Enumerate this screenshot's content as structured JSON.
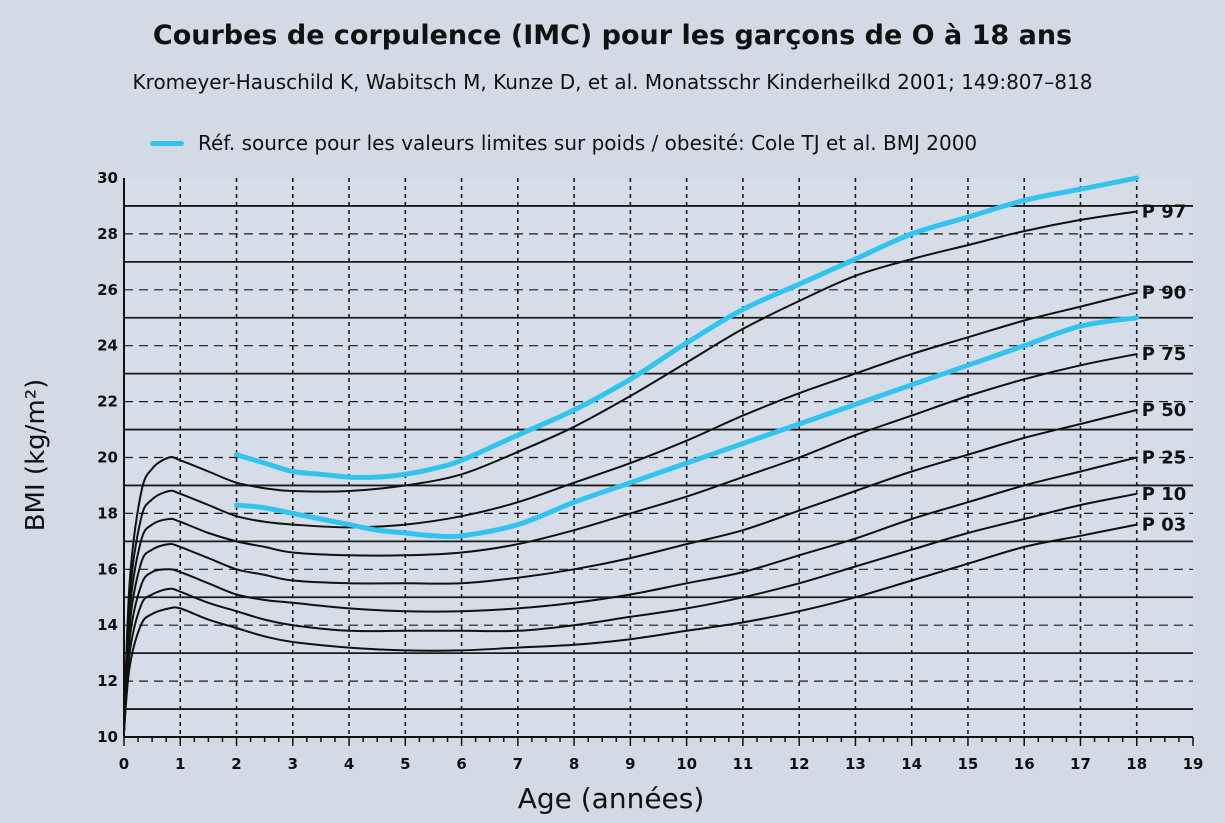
{
  "chart_data": {
    "type": "line",
    "title": "Courbes de corpulence (IMC) pour les garçons de O à 18 ans",
    "subtitle": "Kromeyer-Hauschild K, Wabitsch M, Kunze D, et al. Monatsschr Kinderheilkd 2001; 149:807–818",
    "legend": {
      "label": "Réf. source pour les valeurs limites sur poids / obesité: Cole TJ et al. BMJ 2000",
      "position": "top-left",
      "color": "#33c3ef"
    },
    "xlabel": "Age (années)",
    "ylabel": "BMI (kg/m²)",
    "xlim": [
      0,
      19
    ],
    "ylim": [
      10,
      30
    ],
    "x_ticks": [
      0,
      1,
      2,
      3,
      4,
      5,
      6,
      7,
      8,
      9,
      10,
      11,
      12,
      13,
      14,
      15,
      16,
      17,
      18,
      19
    ],
    "y_ticks": [
      10,
      12,
      14,
      16,
      18,
      20,
      22,
      24,
      26,
      28,
      30
    ],
    "grid": true,
    "series": [
      {
        "name": "P 97",
        "color": "#111111",
        "x": [
          0,
          0.1,
          0.3,
          0.5,
          0.8,
          1,
          1.5,
          2,
          2.5,
          3,
          4,
          5,
          6,
          7,
          8,
          9,
          10,
          11,
          12,
          13,
          14,
          15,
          16,
          17,
          18
        ],
        "values": [
          10.2,
          15.5,
          18.7,
          19.6,
          20.0,
          19.9,
          19.5,
          19.1,
          18.9,
          18.8,
          18.8,
          19.0,
          19.4,
          20.2,
          21.1,
          22.2,
          23.4,
          24.6,
          25.6,
          26.5,
          27.1,
          27.6,
          28.1,
          28.5,
          28.8
        ]
      },
      {
        "name": "P 90",
        "color": "#111111",
        "x": [
          0,
          0.1,
          0.3,
          0.5,
          0.8,
          1,
          1.5,
          2,
          2.5,
          3,
          4,
          5,
          6,
          7,
          8,
          9,
          10,
          11,
          12,
          13,
          14,
          15,
          16,
          17,
          18
        ],
        "values": [
          10.2,
          15.0,
          17.8,
          18.5,
          18.8,
          18.7,
          18.3,
          17.9,
          17.7,
          17.6,
          17.5,
          17.6,
          17.9,
          18.4,
          19.1,
          19.8,
          20.6,
          21.5,
          22.3,
          23.0,
          23.7,
          24.3,
          24.9,
          25.4,
          25.9
        ]
      },
      {
        "name": "P 75",
        "color": "#111111",
        "x": [
          0,
          0.1,
          0.3,
          0.5,
          0.8,
          1,
          1.5,
          2,
          2.5,
          3,
          4,
          5,
          6,
          7,
          8,
          9,
          10,
          11,
          12,
          13,
          14,
          15,
          16,
          17,
          18
        ],
        "values": [
          10.2,
          14.5,
          17.0,
          17.6,
          17.8,
          17.7,
          17.3,
          17.0,
          16.8,
          16.6,
          16.5,
          16.5,
          16.6,
          16.9,
          17.4,
          18.0,
          18.6,
          19.3,
          20.0,
          20.8,
          21.5,
          22.2,
          22.8,
          23.3,
          23.7
        ]
      },
      {
        "name": "P 50",
        "color": "#111111",
        "x": [
          0,
          0.1,
          0.3,
          0.5,
          0.8,
          1,
          1.5,
          2,
          2.5,
          3,
          4,
          5,
          6,
          7,
          8,
          9,
          10,
          11,
          12,
          13,
          14,
          15,
          16,
          17,
          18
        ],
        "values": [
          10.2,
          14.0,
          16.2,
          16.7,
          16.9,
          16.8,
          16.4,
          16.0,
          15.8,
          15.6,
          15.5,
          15.5,
          15.5,
          15.7,
          16.0,
          16.4,
          16.9,
          17.4,
          18.1,
          18.8,
          19.5,
          20.1,
          20.7,
          21.2,
          21.7
        ]
      },
      {
        "name": "P 25",
        "color": "#111111",
        "x": [
          0,
          0.1,
          0.3,
          0.5,
          0.8,
          1,
          1.5,
          2,
          2.5,
          3,
          4,
          5,
          6,
          7,
          8,
          9,
          10,
          11,
          12,
          13,
          14,
          15,
          16,
          17,
          18
        ],
        "values": [
          10.2,
          13.5,
          15.4,
          15.9,
          16.0,
          15.9,
          15.5,
          15.1,
          14.9,
          14.8,
          14.6,
          14.5,
          14.5,
          14.6,
          14.8,
          15.1,
          15.5,
          15.9,
          16.5,
          17.1,
          17.8,
          18.4,
          19.0,
          19.5,
          20.0
        ]
      },
      {
        "name": "P 10",
        "color": "#111111",
        "x": [
          0,
          0.1,
          0.3,
          0.5,
          0.8,
          1,
          1.5,
          2,
          2.5,
          3,
          4,
          5,
          6,
          7,
          8,
          9,
          10,
          11,
          12,
          13,
          14,
          15,
          16,
          17,
          18
        ],
        "values": [
          10.2,
          13.0,
          14.7,
          15.1,
          15.3,
          15.2,
          14.8,
          14.5,
          14.2,
          14.0,
          13.8,
          13.8,
          13.8,
          13.8,
          14.0,
          14.3,
          14.6,
          15.0,
          15.5,
          16.1,
          16.7,
          17.3,
          17.8,
          18.3,
          18.7
        ]
      },
      {
        "name": "P 03",
        "color": "#111111",
        "x": [
          0,
          0.1,
          0.3,
          0.5,
          0.8,
          1,
          1.5,
          2,
          2.5,
          3,
          4,
          5,
          6,
          7,
          8,
          9,
          10,
          11,
          12,
          13,
          14,
          15,
          16,
          17,
          18
        ],
        "values": [
          10.2,
          12.5,
          14.0,
          14.4,
          14.6,
          14.6,
          14.2,
          13.9,
          13.6,
          13.4,
          13.2,
          13.1,
          13.1,
          13.2,
          13.3,
          13.5,
          13.8,
          14.1,
          14.5,
          15.0,
          15.6,
          16.2,
          16.8,
          17.2,
          17.6
        ]
      },
      {
        "name": "",
        "color": "#33c3ef",
        "x": [
          2,
          2.5,
          3,
          3.5,
          4,
          4.5,
          5,
          5.5,
          6,
          7,
          8,
          9,
          10,
          11,
          12,
          13,
          14,
          15,
          16,
          17,
          18
        ],
        "values": [
          20.1,
          19.8,
          19.5,
          19.4,
          19.3,
          19.3,
          19.4,
          19.6,
          19.9,
          20.8,
          21.7,
          22.8,
          24.1,
          25.3,
          26.2,
          27.1,
          28.0,
          28.6,
          29.2,
          29.6,
          30.0
        ]
      },
      {
        "name": "",
        "color": "#33c3ef",
        "x": [
          2,
          2.5,
          3,
          3.5,
          4,
          4.5,
          5,
          5.5,
          6,
          7,
          8,
          9,
          10,
          11,
          12,
          13,
          14,
          15,
          16,
          17,
          18
        ],
        "values": [
          18.3,
          18.2,
          18.0,
          17.8,
          17.6,
          17.4,
          17.3,
          17.2,
          17.2,
          17.6,
          18.4,
          19.1,
          19.8,
          20.5,
          21.2,
          21.9,
          22.6,
          23.3,
          24.0,
          24.7,
          25.0
        ]
      }
    ]
  }
}
